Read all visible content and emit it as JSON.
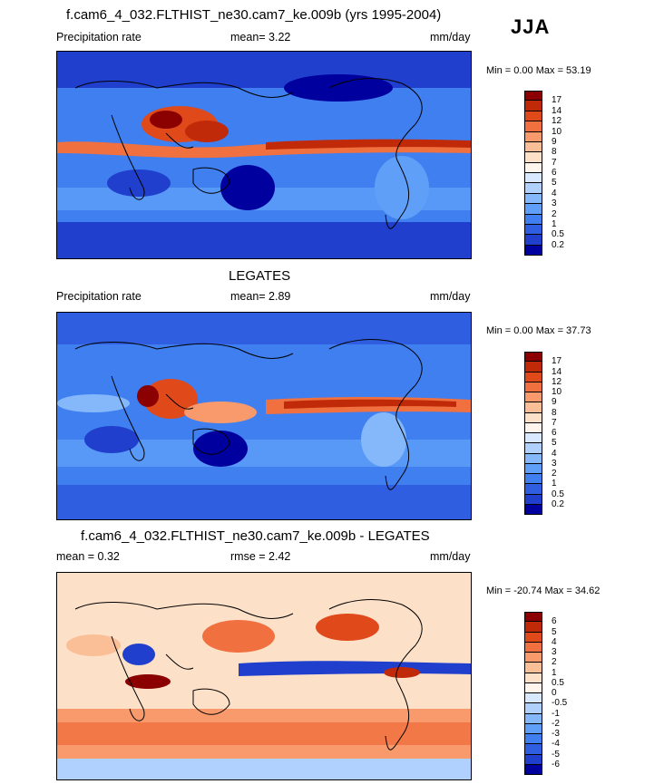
{
  "season": "JJA",
  "colors": {
    "abs_scale": [
      "#00009e",
      "#1f3fcc",
      "#2f5fe0",
      "#3f7ff0",
      "#5f9ff8",
      "#85b8fb",
      "#b0d0fd",
      "#d8e8fe",
      "#fff5ec",
      "#fde0c8",
      "#fbbf98",
      "#f89a6c",
      "#f0703f",
      "#e04a1a",
      "#c02a08",
      "#8b0000"
    ],
    "diff_scale": [
      "#00009e",
      "#1f3fcc",
      "#2f5fe0",
      "#3f7ff0",
      "#5f9ff8",
      "#85b8fb",
      "#b0d0fd",
      "#d8e8fe",
      "#fff5ec",
      "#fde0c8",
      "#fbbf98",
      "#f89a6c",
      "#f0703f",
      "#e04a1a",
      "#c02a08",
      "#8b0000"
    ]
  },
  "panels": [
    {
      "title": "f.cam6_4_032.FLTHIST_ne30.cam7_ke.009b (yrs 1995-2004)",
      "left_label": "Precipitation rate",
      "mean_label": "mean=   3.22",
      "units": "mm/day",
      "minmax": "Min =   0.00 Max =  53.19",
      "levels": [
        "17",
        "14",
        "12",
        "10",
        "9",
        "8",
        "7",
        "6",
        "5",
        "4",
        "3",
        "2",
        "1",
        "0.5",
        "0.2"
      ]
    },
    {
      "title": "LEGATES",
      "left_label": "Precipitation rate",
      "mean_label": "mean=   2.89",
      "units": "mm/day",
      "minmax": "Min =   0.00 Max =  37.73",
      "levels": [
        "17",
        "14",
        "12",
        "10",
        "9",
        "8",
        "7",
        "6",
        "5",
        "4",
        "3",
        "2",
        "1",
        "0.5",
        "0.2"
      ]
    },
    {
      "title": "f.cam6_4_032.FLTHIST_ne30.cam7_ke.009b - LEGATES",
      "left_label": "mean =   0.32",
      "mean_label": "rmse =   2.42",
      "units": "mm/day",
      "minmax": "Min = -20.74 Max =  34.62",
      "levels": [
        "6",
        "5",
        "4",
        "3",
        "2",
        "1",
        "0.5",
        "0",
        "-0.5",
        "-1",
        "-2",
        "-3",
        "-4",
        "-5",
        "-6"
      ]
    }
  ]
}
